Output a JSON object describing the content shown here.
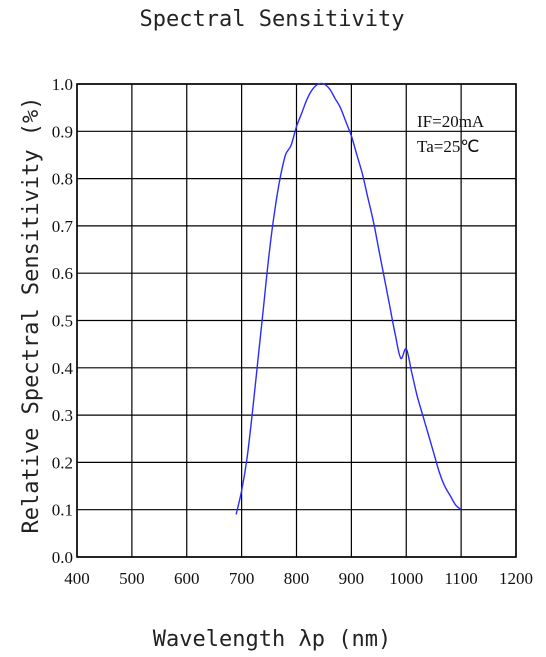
{
  "chart_data": {
    "type": "line",
    "title": "Spectral Sensitivity",
    "xlabel": "Wavelength λp (nm)",
    "ylabel": "Relative Spectral Sensitivity (%)",
    "xlim": [
      400,
      1200
    ],
    "ylim": [
      0.0,
      1.0
    ],
    "grid": true,
    "x_ticks": [
      "400",
      "500",
      "600",
      "700",
      "800",
      "900",
      "1000",
      "1100",
      "1200"
    ],
    "y_ticks": [
      "0.0",
      "0.1",
      "0.2",
      "0.3",
      "0.4",
      "0.5",
      "0.6",
      "0.7",
      "0.8",
      "0.9",
      "1.0"
    ],
    "annotations": [
      "IF=20mA",
      "Ta=25℃"
    ],
    "series": [
      {
        "color": "#2b2bff",
        "x": [
          690,
          700,
          710,
          720,
          730,
          740,
          750,
          760,
          770,
          780,
          790,
          800,
          810,
          820,
          830,
          840,
          850,
          860,
          870,
          880,
          890,
          900,
          910,
          920,
          930,
          940,
          950,
          960,
          970,
          980,
          990,
          1000,
          1010,
          1020,
          1030,
          1040,
          1050,
          1060,
          1070,
          1080,
          1090,
          1100
        ],
        "y": [
          0.09,
          0.14,
          0.21,
          0.31,
          0.42,
          0.53,
          0.64,
          0.73,
          0.8,
          0.85,
          0.87,
          0.91,
          0.94,
          0.97,
          0.99,
          1.0,
          1.0,
          0.99,
          0.97,
          0.95,
          0.92,
          0.89,
          0.85,
          0.81,
          0.76,
          0.71,
          0.65,
          0.59,
          0.53,
          0.47,
          0.42,
          0.44,
          0.39,
          0.34,
          0.3,
          0.26,
          0.22,
          0.18,
          0.15,
          0.13,
          0.11,
          0.1
        ]
      }
    ]
  }
}
